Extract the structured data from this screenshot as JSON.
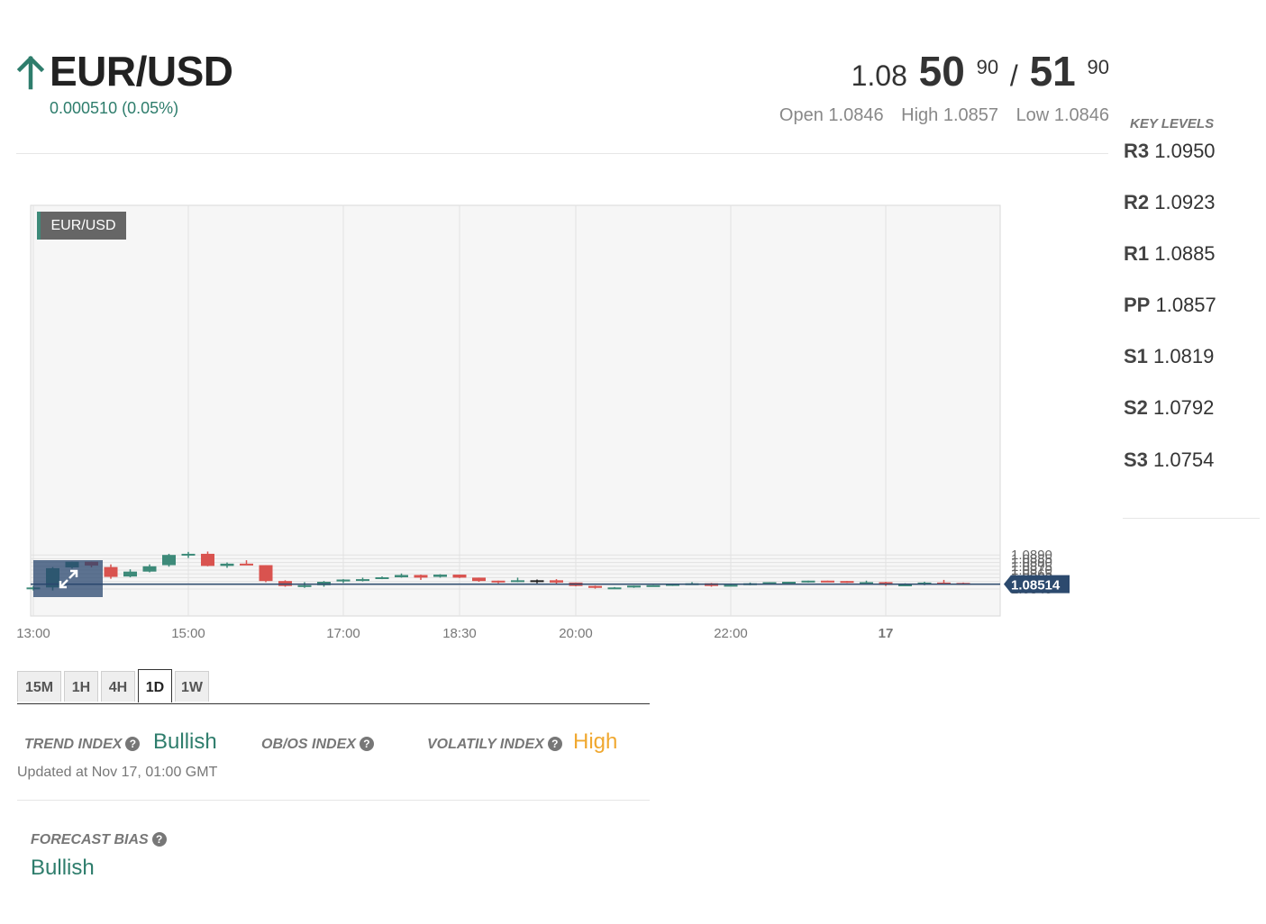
{
  "header": {
    "direction_icon": "arrow-up-icon",
    "pair": "EUR/USD",
    "change": "0.000510 (0.05%)",
    "bid_prefix": "1.08",
    "bid_big": "50",
    "bid_sup": "90",
    "separator": "/",
    "ask_big": "51",
    "ask_sup": "90",
    "open_label": "Open",
    "open_value": "1.0846",
    "high_label": "High",
    "high_value": "1.0857",
    "low_label": "Low",
    "low_value": "1.0846"
  },
  "key_levels": {
    "title": "KEY LEVELS",
    "levels": [
      {
        "name": "R3",
        "value": "1.0950"
      },
      {
        "name": "R2",
        "value": "1.0923"
      },
      {
        "name": "R1",
        "value": "1.0885"
      },
      {
        "name": "PP",
        "value": "1.0857"
      },
      {
        "name": "S1",
        "value": "1.0819"
      },
      {
        "name": "S2",
        "value": "1.0792"
      },
      {
        "name": "S3",
        "value": "1.0754"
      }
    ]
  },
  "chart_label": "EUR/USD",
  "expand_icon": "expand-arrows-icon",
  "colors": {
    "up": "#3d8a79",
    "down": "#d9534f",
    "accent": "#2e7d6c",
    "volatility": "#f0a830",
    "price_tag": "#2c4a6e"
  },
  "chart_data": {
    "type": "candlestick",
    "title": "",
    "xlabel": "",
    "ylabel": "",
    "ylim": [
      1.0841,
      1.0897
    ],
    "y_ticks": [
      "1.0890",
      "1.0885",
      "1.0880",
      "1.0875",
      "1.0870",
      "1.0865",
      "1.0860",
      "1.0855",
      "1.0850",
      "1.0845"
    ],
    "x_ticks": [
      {
        "label": "13:00",
        "i": 0
      },
      {
        "label": "15:00",
        "i": 8
      },
      {
        "label": "17:00",
        "i": 16
      },
      {
        "label": "18:30",
        "i": 22
      },
      {
        "label": "20:00",
        "i": 28
      },
      {
        "label": "22:00",
        "i": 36
      },
      {
        "label": "17",
        "i": 44
      }
    ],
    "current_price": "1.08514",
    "current_value": 1.08514,
    "grid": true,
    "candles": [
      {
        "o": 1.08455,
        "h": 1.0849,
        "l": 1.0843,
        "c": 1.0847
      },
      {
        "o": 1.0847,
        "h": 1.0874,
        "l": 1.0843,
        "c": 1.08725
      },
      {
        "o": 1.08735,
        "h": 1.0881,
        "l": 1.0872,
        "c": 1.0881
      },
      {
        "o": 1.0881,
        "h": 1.0881,
        "l": 1.08735,
        "c": 1.0876
      },
      {
        "o": 1.0874,
        "h": 1.08775,
        "l": 1.08585,
        "c": 1.0861
      },
      {
        "o": 1.08615,
        "h": 1.0871,
        "l": 1.08605,
        "c": 1.0868
      },
      {
        "o": 1.0868,
        "h": 1.08775,
        "l": 1.0867,
        "c": 1.0875
      },
      {
        "o": 1.08765,
        "h": 1.08915,
        "l": 1.08745,
        "c": 1.089
      },
      {
        "o": 1.089,
        "h": 1.0894,
        "l": 1.0886,
        "c": 1.08915
      },
      {
        "o": 1.08915,
        "h": 1.08945,
        "l": 1.0875,
        "c": 1.08755
      },
      {
        "o": 1.08755,
        "h": 1.088,
        "l": 1.0873,
        "c": 1.08785
      },
      {
        "o": 1.08785,
        "h": 1.0883,
        "l": 1.08765,
        "c": 1.0877
      },
      {
        "o": 1.08765,
        "h": 1.08765,
        "l": 1.0854,
        "c": 1.08555
      },
      {
        "o": 1.08555,
        "h": 1.08565,
        "l": 1.0848,
        "c": 1.0849
      },
      {
        "o": 1.0849,
        "h": 1.0854,
        "l": 1.08465,
        "c": 1.085
      },
      {
        "o": 1.085,
        "h": 1.08555,
        "l": 1.0848,
        "c": 1.08545
      },
      {
        "o": 1.0855,
        "h": 1.0858,
        "l": 1.0853,
        "c": 1.08575
      },
      {
        "o": 1.08575,
        "h": 1.086,
        "l": 1.0855,
        "c": 1.0858
      },
      {
        "o": 1.08585,
        "h": 1.08615,
        "l": 1.0858,
        "c": 1.08605
      },
      {
        "o": 1.08605,
        "h": 1.08655,
        "l": 1.086,
        "c": 1.08635
      },
      {
        "o": 1.08635,
        "h": 1.0864,
        "l": 1.0857,
        "c": 1.086
      },
      {
        "o": 1.0861,
        "h": 1.08645,
        "l": 1.086,
        "c": 1.0864
      },
      {
        "o": 1.0864,
        "h": 1.0864,
        "l": 1.08595,
        "c": 1.086
      },
      {
        "o": 1.086,
        "h": 1.086,
        "l": 1.08545,
        "c": 1.08555
      },
      {
        "o": 1.0856,
        "h": 1.0856,
        "l": 1.08525,
        "c": 1.08545
      },
      {
        "o": 1.08545,
        "h": 1.086,
        "l": 1.0854,
        "c": 1.08565
      },
      {
        "o": 1.08565,
        "h": 1.08575,
        "l": 1.08525,
        "c": 1.08565
      },
      {
        "o": 1.08565,
        "h": 1.0858,
        "l": 1.0852,
        "c": 1.08535
      },
      {
        "o": 1.08535,
        "h": 1.08535,
        "l": 1.08485,
        "c": 1.0849
      },
      {
        "o": 1.0849,
        "h": 1.08495,
        "l": 1.08455,
        "c": 1.08465
      },
      {
        "o": 1.0846,
        "h": 1.08475,
        "l": 1.0845,
        "c": 1.0847
      },
      {
        "o": 1.0847,
        "h": 1.08495,
        "l": 1.08465,
        "c": 1.08495
      },
      {
        "o": 1.08495,
        "h": 1.085,
        "l": 1.08485,
        "c": 1.085
      },
      {
        "o": 1.08495,
        "h": 1.08515,
        "l": 1.0849,
        "c": 1.08515
      },
      {
        "o": 1.08515,
        "h": 1.0854,
        "l": 1.08515,
        "c": 1.08525
      },
      {
        "o": 1.08525,
        "h": 1.0853,
        "l": 1.0848,
        "c": 1.0849
      },
      {
        "o": 1.0849,
        "h": 1.0851,
        "l": 1.0849,
        "c": 1.08505
      },
      {
        "o": 1.08505,
        "h": 1.08535,
        "l": 1.085,
        "c": 1.08525
      },
      {
        "o": 1.08525,
        "h": 1.0854,
        "l": 1.0852,
        "c": 1.0854
      },
      {
        "o": 1.0854,
        "h": 1.08545,
        "l": 1.08515,
        "c": 1.08545
      },
      {
        "o": 1.08545,
        "h": 1.0856,
        "l": 1.08535,
        "c": 1.0856
      },
      {
        "o": 1.0856,
        "h": 1.0856,
        "l": 1.0855,
        "c": 1.08555
      },
      {
        "o": 1.08555,
        "h": 1.08555,
        "l": 1.0853,
        "c": 1.08535
      },
      {
        "o": 1.08535,
        "h": 1.0856,
        "l": 1.0853,
        "c": 1.0854
      },
      {
        "o": 1.0854,
        "h": 1.08545,
        "l": 1.0849,
        "c": 1.08505
      },
      {
        "o": 1.08505,
        "h": 1.08525,
        "l": 1.085,
        "c": 1.0851
      },
      {
        "o": 1.0851,
        "h": 1.08545,
        "l": 1.085,
        "c": 1.08535
      },
      {
        "o": 1.08535,
        "h": 1.0857,
        "l": 1.0853,
        "c": 1.0853
      },
      {
        "o": 1.0853,
        "h": 1.08535,
        "l": 1.0851,
        "c": 1.08515
      }
    ]
  },
  "tabs": [
    {
      "label": "15M",
      "active": false
    },
    {
      "label": "1H",
      "active": false
    },
    {
      "label": "4H",
      "active": false
    },
    {
      "label": "1D",
      "active": true
    },
    {
      "label": "1W",
      "active": false
    }
  ],
  "indices": {
    "trend_label": "TREND INDEX",
    "trend_value": "Bullish",
    "obos_label": "OB/OS INDEX",
    "volatility_label": "VOLATILY INDEX",
    "volatility_value": "High",
    "help_icon": "question-circle-icon",
    "updated": "Updated at Nov 17, 01:00 GMT"
  },
  "forecast": {
    "label": "FORECAST BIAS",
    "value": "Bullish"
  }
}
